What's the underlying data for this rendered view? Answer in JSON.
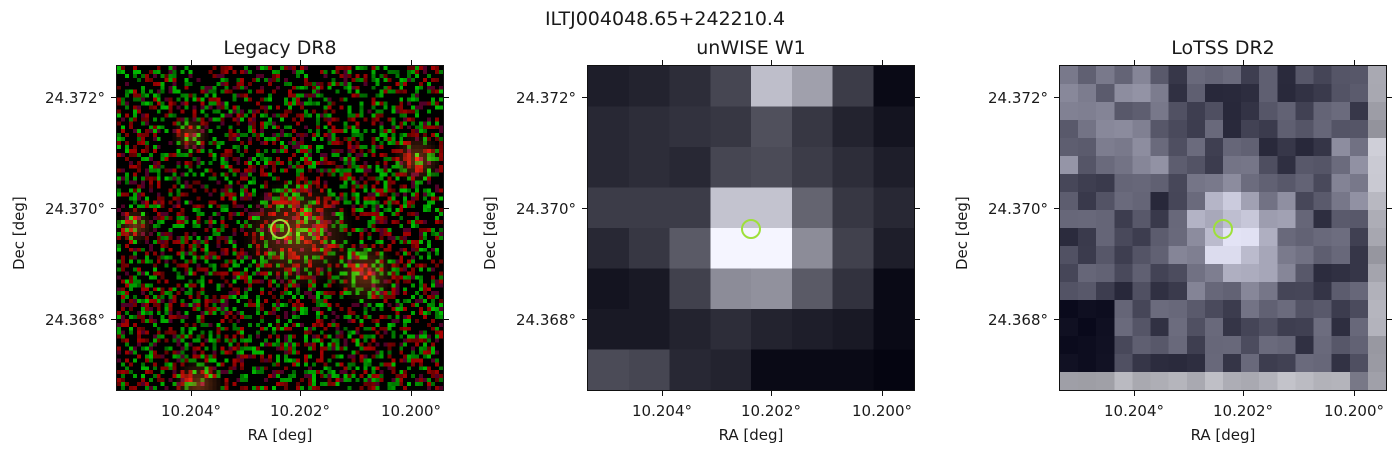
{
  "suptitle": "ILTJ004048.65+242210.4",
  "axes": {
    "xlabel": "RA [deg]",
    "ylabel": "Dec [deg]",
    "xticks": [
      "10.204°",
      "10.202°",
      "10.200°"
    ],
    "yticks": [
      "24.372°",
      "24.370°",
      "24.368°"
    ]
  },
  "panels": [
    {
      "title": "Legacy DR8",
      "image": "colour-noise-cutout"
    },
    {
      "title": "unWISE W1",
      "image": "grayscale-blocky-cutout"
    },
    {
      "title": "LoTSS DR2",
      "image": "grayscale-radio-cutout"
    }
  ],
  "marker_color": "#9ee03a"
}
